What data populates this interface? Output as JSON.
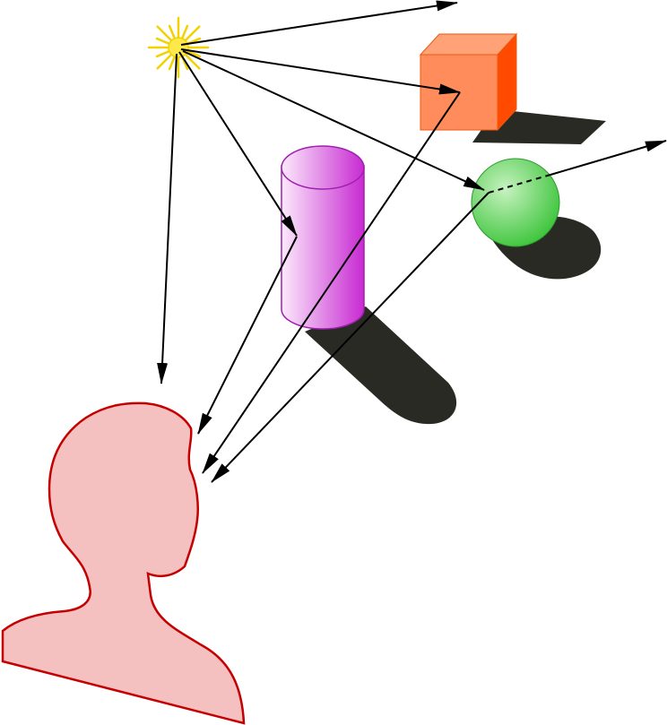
{
  "scene": {
    "colors": {
      "background": "#ffffff",
      "ray": "#000000",
      "shadow": "#2a2a24",
      "sun_fill": "#ffe94a",
      "sun_rays": "#f2d200",
      "cube_front": "#ff8c5a",
      "cube_top": "#ffa277",
      "cube_side": "#ff4a00",
      "cube_edge": "#e85a10",
      "cylinder_light": "#fbeafb",
      "cylinder_dark": "#c82ad2",
      "cylinder_edge": "#a020b0",
      "sphere_light": "#c7f2c0",
      "sphere_dark": "#3cc43a",
      "sphere_edge": "#2c9a2c",
      "head_fill": "#f4c0c0",
      "head_outline": "#c40000"
    },
    "objects": [
      {
        "name": "light source",
        "icon": "sun-icon"
      },
      {
        "name": "cube",
        "icon": "cube-icon"
      },
      {
        "name": "cylinder",
        "icon": "cylinder-icon"
      },
      {
        "name": "sphere",
        "icon": "sphere-icon"
      },
      {
        "name": "viewer",
        "icon": "head-silhouette-icon"
      }
    ]
  }
}
